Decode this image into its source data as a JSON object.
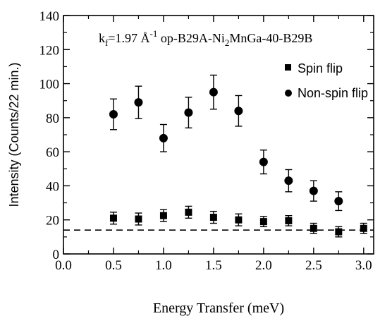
{
  "chart_data": {
    "type": "scatter",
    "annotation": {
      "kf_prefix": "k",
      "kf_sub": "f",
      "kf_value": "=1.97 Å",
      "kf_exp": "-1",
      "sample_prefix": " op-B29A-Ni",
      "sample_sub": "2",
      "sample_suffix": "MnGa-40-B29B"
    },
    "xlabel": "Energy Transfer (meV)",
    "ylabel": "Intensity (Counts/22 min.)",
    "xlim": [
      0.0,
      3.1
    ],
    "ylim": [
      0,
      140
    ],
    "xticks": [
      {
        "value": 0.0,
        "label": "0.0"
      },
      {
        "value": 0.5,
        "label": "0.5"
      },
      {
        "value": 1.0,
        "label": "1.0"
      },
      {
        "value": 1.5,
        "label": "1.5"
      },
      {
        "value": 2.0,
        "label": "2.0"
      },
      {
        "value": 2.5,
        "label": "2.5"
      },
      {
        "value": 3.0,
        "label": "3.0"
      }
    ],
    "yticks": [
      {
        "value": 0,
        "label": "0"
      },
      {
        "value": 20,
        "label": "20"
      },
      {
        "value": 40,
        "label": "40"
      },
      {
        "value": 60,
        "label": "60"
      },
      {
        "value": 80,
        "label": "80"
      },
      {
        "value": 100,
        "label": "100"
      },
      {
        "value": 120,
        "label": "120"
      },
      {
        "value": 140,
        "label": "140"
      }
    ],
    "legend_position": "top-right",
    "baseline": 14,
    "series": [
      {
        "name": "Spin flip",
        "marker": "square",
        "x": [
          0.5,
          0.75,
          1.0,
          1.25,
          1.5,
          1.75,
          2.0,
          2.25,
          2.5,
          2.75,
          3.0
        ],
        "y": [
          21,
          20.5,
          22.5,
          24.5,
          21.5,
          20,
          19,
          19.5,
          15,
          13,
          15
        ],
        "err": [
          3.5,
          3.5,
          3.5,
          3.5,
          3.5,
          3.5,
          3,
          3,
          3,
          3,
          3
        ]
      },
      {
        "name": "Non-spin flip",
        "marker": "circle",
        "x": [
          0.5,
          0.75,
          1.0,
          1.25,
          1.5,
          1.75,
          2.0,
          2.25,
          2.5,
          2.75
        ],
        "y": [
          82,
          89,
          68,
          83,
          95,
          84,
          54,
          43,
          37,
          31
        ],
        "err": [
          9,
          9.5,
          8,
          9,
          10,
          9,
          7,
          6.5,
          6,
          5.5
        ]
      }
    ]
  }
}
